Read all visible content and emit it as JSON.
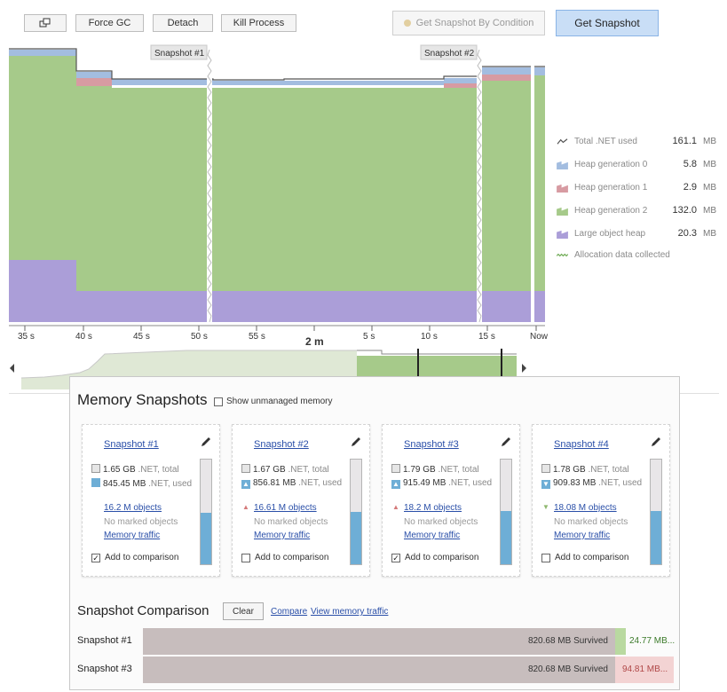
{
  "toolbar": {
    "icon_button": "window-select-icon",
    "force_gc": "Force GC",
    "detach": "Detach",
    "kill_process": "Kill Process",
    "get_by_condition": "Get Snapshot By Condition",
    "get_snapshot": "Get Snapshot"
  },
  "timeline": {
    "snapshot_markers": [
      "Snapshot #1",
      "Snapshot #2"
    ],
    "axis_ticks": [
      "35 s",
      "40 s",
      "45 s",
      "50 s",
      "55 s",
      "2 m",
      "5 s",
      "10 s",
      "15 s",
      "Now"
    ],
    "colors": {
      "gen0": "#a3bde0",
      "gen1": "#d79ba2",
      "gen2": "#a6ca8a",
      "loh": "#ab9ed8",
      "total": "#6a6a6a"
    }
  },
  "legend": [
    {
      "label": "Total .NET used",
      "value": "161.1",
      "unit": "MB",
      "icon": "line-icon"
    },
    {
      "label": "Heap generation 0",
      "value": "5.8",
      "unit": "MB",
      "icon": "gen0-swatch"
    },
    {
      "label": "Heap generation 1",
      "value": "2.9",
      "unit": "MB",
      "icon": "gen1-swatch"
    },
    {
      "label": "Heap generation 2",
      "value": "132.0",
      "unit": "MB",
      "icon": "gen2-swatch"
    },
    {
      "label": "Large object heap",
      "value": "20.3",
      "unit": "MB",
      "icon": "loh-swatch"
    },
    {
      "label": "Allocation data collected",
      "value": "",
      "unit": "",
      "icon": "wavy-icon"
    }
  ],
  "panel": {
    "title": "Memory Snapshots",
    "show_unmanaged": "Show unmanaged memory",
    "snapshots": [
      {
        "title": "Snapshot #1",
        "total": "1.65 GB",
        "total_suffix": ".NET, total",
        "used": "845.45 MB",
        "used_suffix": ".NET, used",
        "trend": "none",
        "objects": "16.2 M objects",
        "marked": "No marked objects",
        "traffic": "Memory traffic",
        "compare_label": "Add to comparison",
        "checked": true,
        "used_fraction": 0.49
      },
      {
        "title": "Snapshot #2",
        "total": "1.67 GB",
        "total_suffix": ".NET, total",
        "used": "856.81 MB",
        "used_suffix": ".NET, used",
        "trend": "up",
        "objects": "16.61 M objects",
        "marked": "No marked objects",
        "traffic": "Memory traffic",
        "compare_label": "Add to comparison",
        "checked": false,
        "used_fraction": 0.5
      },
      {
        "title": "Snapshot #3",
        "total": "1.79 GB",
        "total_suffix": ".NET, total",
        "used": "915.49 MB",
        "used_suffix": ".NET, used",
        "trend": "up",
        "objects": "18.2 M objects",
        "marked": "No marked objects",
        "traffic": "Memory traffic",
        "compare_label": "Add to comparison",
        "checked": true,
        "used_fraction": 0.51
      },
      {
        "title": "Snapshot #4",
        "total": "1.78 GB",
        "total_suffix": ".NET, total",
        "used": "909.83 MB",
        "used_suffix": ".NET, used",
        "trend": "down",
        "objects": "18.08 M objects",
        "marked": "No marked objects",
        "traffic": "Memory traffic",
        "compare_label": "Add to comparison",
        "checked": false,
        "used_fraction": 0.51
      }
    ]
  },
  "comparison": {
    "title": "Snapshot Comparison",
    "clear": "Clear",
    "compare": "Compare",
    "view_traffic": "View memory traffic",
    "rows": [
      {
        "name": "Snapshot #1",
        "survived": "820.68 MB Survived",
        "extra": "24.77 MB...",
        "extra_color": "#b9d9a0",
        "extra_text_color": "#3b7a2a"
      },
      {
        "name": "Snapshot #3",
        "survived": "820.68 MB Survived",
        "extra": "94.81 MB...",
        "extra_color": "#e8b3b3",
        "extra_text_color": "#b04848"
      }
    ]
  }
}
